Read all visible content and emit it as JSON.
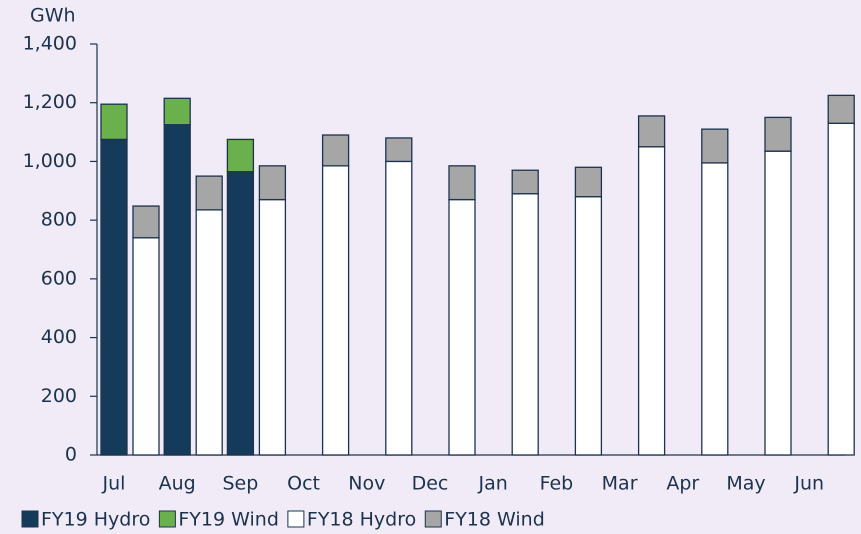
{
  "chart_data": {
    "type": "bar",
    "stacked": true,
    "y_label": "GWh",
    "categories": [
      "Jul",
      "Aug",
      "Sep",
      "Oct",
      "Nov",
      "Dec",
      "Jan",
      "Feb",
      "Mar",
      "Apr",
      "May",
      "Jun"
    ],
    "series": [
      {
        "name": "FY19 Hydro",
        "color": "#143b5a",
        "group": "FY19",
        "values": [
          1075,
          1125,
          965,
          null,
          null,
          null,
          null,
          null,
          null,
          null,
          null,
          null
        ]
      },
      {
        "name": "FY19 Wind",
        "color": "#6ab04c",
        "group": "FY19",
        "values": [
          120,
          90,
          110,
          null,
          null,
          null,
          null,
          null,
          null,
          null,
          null,
          null
        ]
      },
      {
        "name": "FY18 Hydro",
        "color": "#ffffff",
        "group": "FY18",
        "values": [
          740,
          835,
          870,
          985,
          1000,
          870,
          890,
          880,
          1050,
          995,
          1035,
          1130
        ]
      },
      {
        "name": "FY18 Wind",
        "color": "#a6a6a6",
        "group": "FY18",
        "values": [
          108,
          115,
          115,
          105,
          80,
          115,
          80,
          100,
          105,
          115,
          115,
          95
        ]
      }
    ],
    "ylim": [
      0,
      1400
    ],
    "yticks": [
      0,
      200,
      400,
      600,
      800,
      {
        "value": 1000,
        "label": "1,000"
      },
      {
        "value": 1200,
        "label": "1,200"
      },
      {
        "value": 1400,
        "label": "1,400"
      }
    ],
    "grid": false,
    "legend": "bottom"
  }
}
